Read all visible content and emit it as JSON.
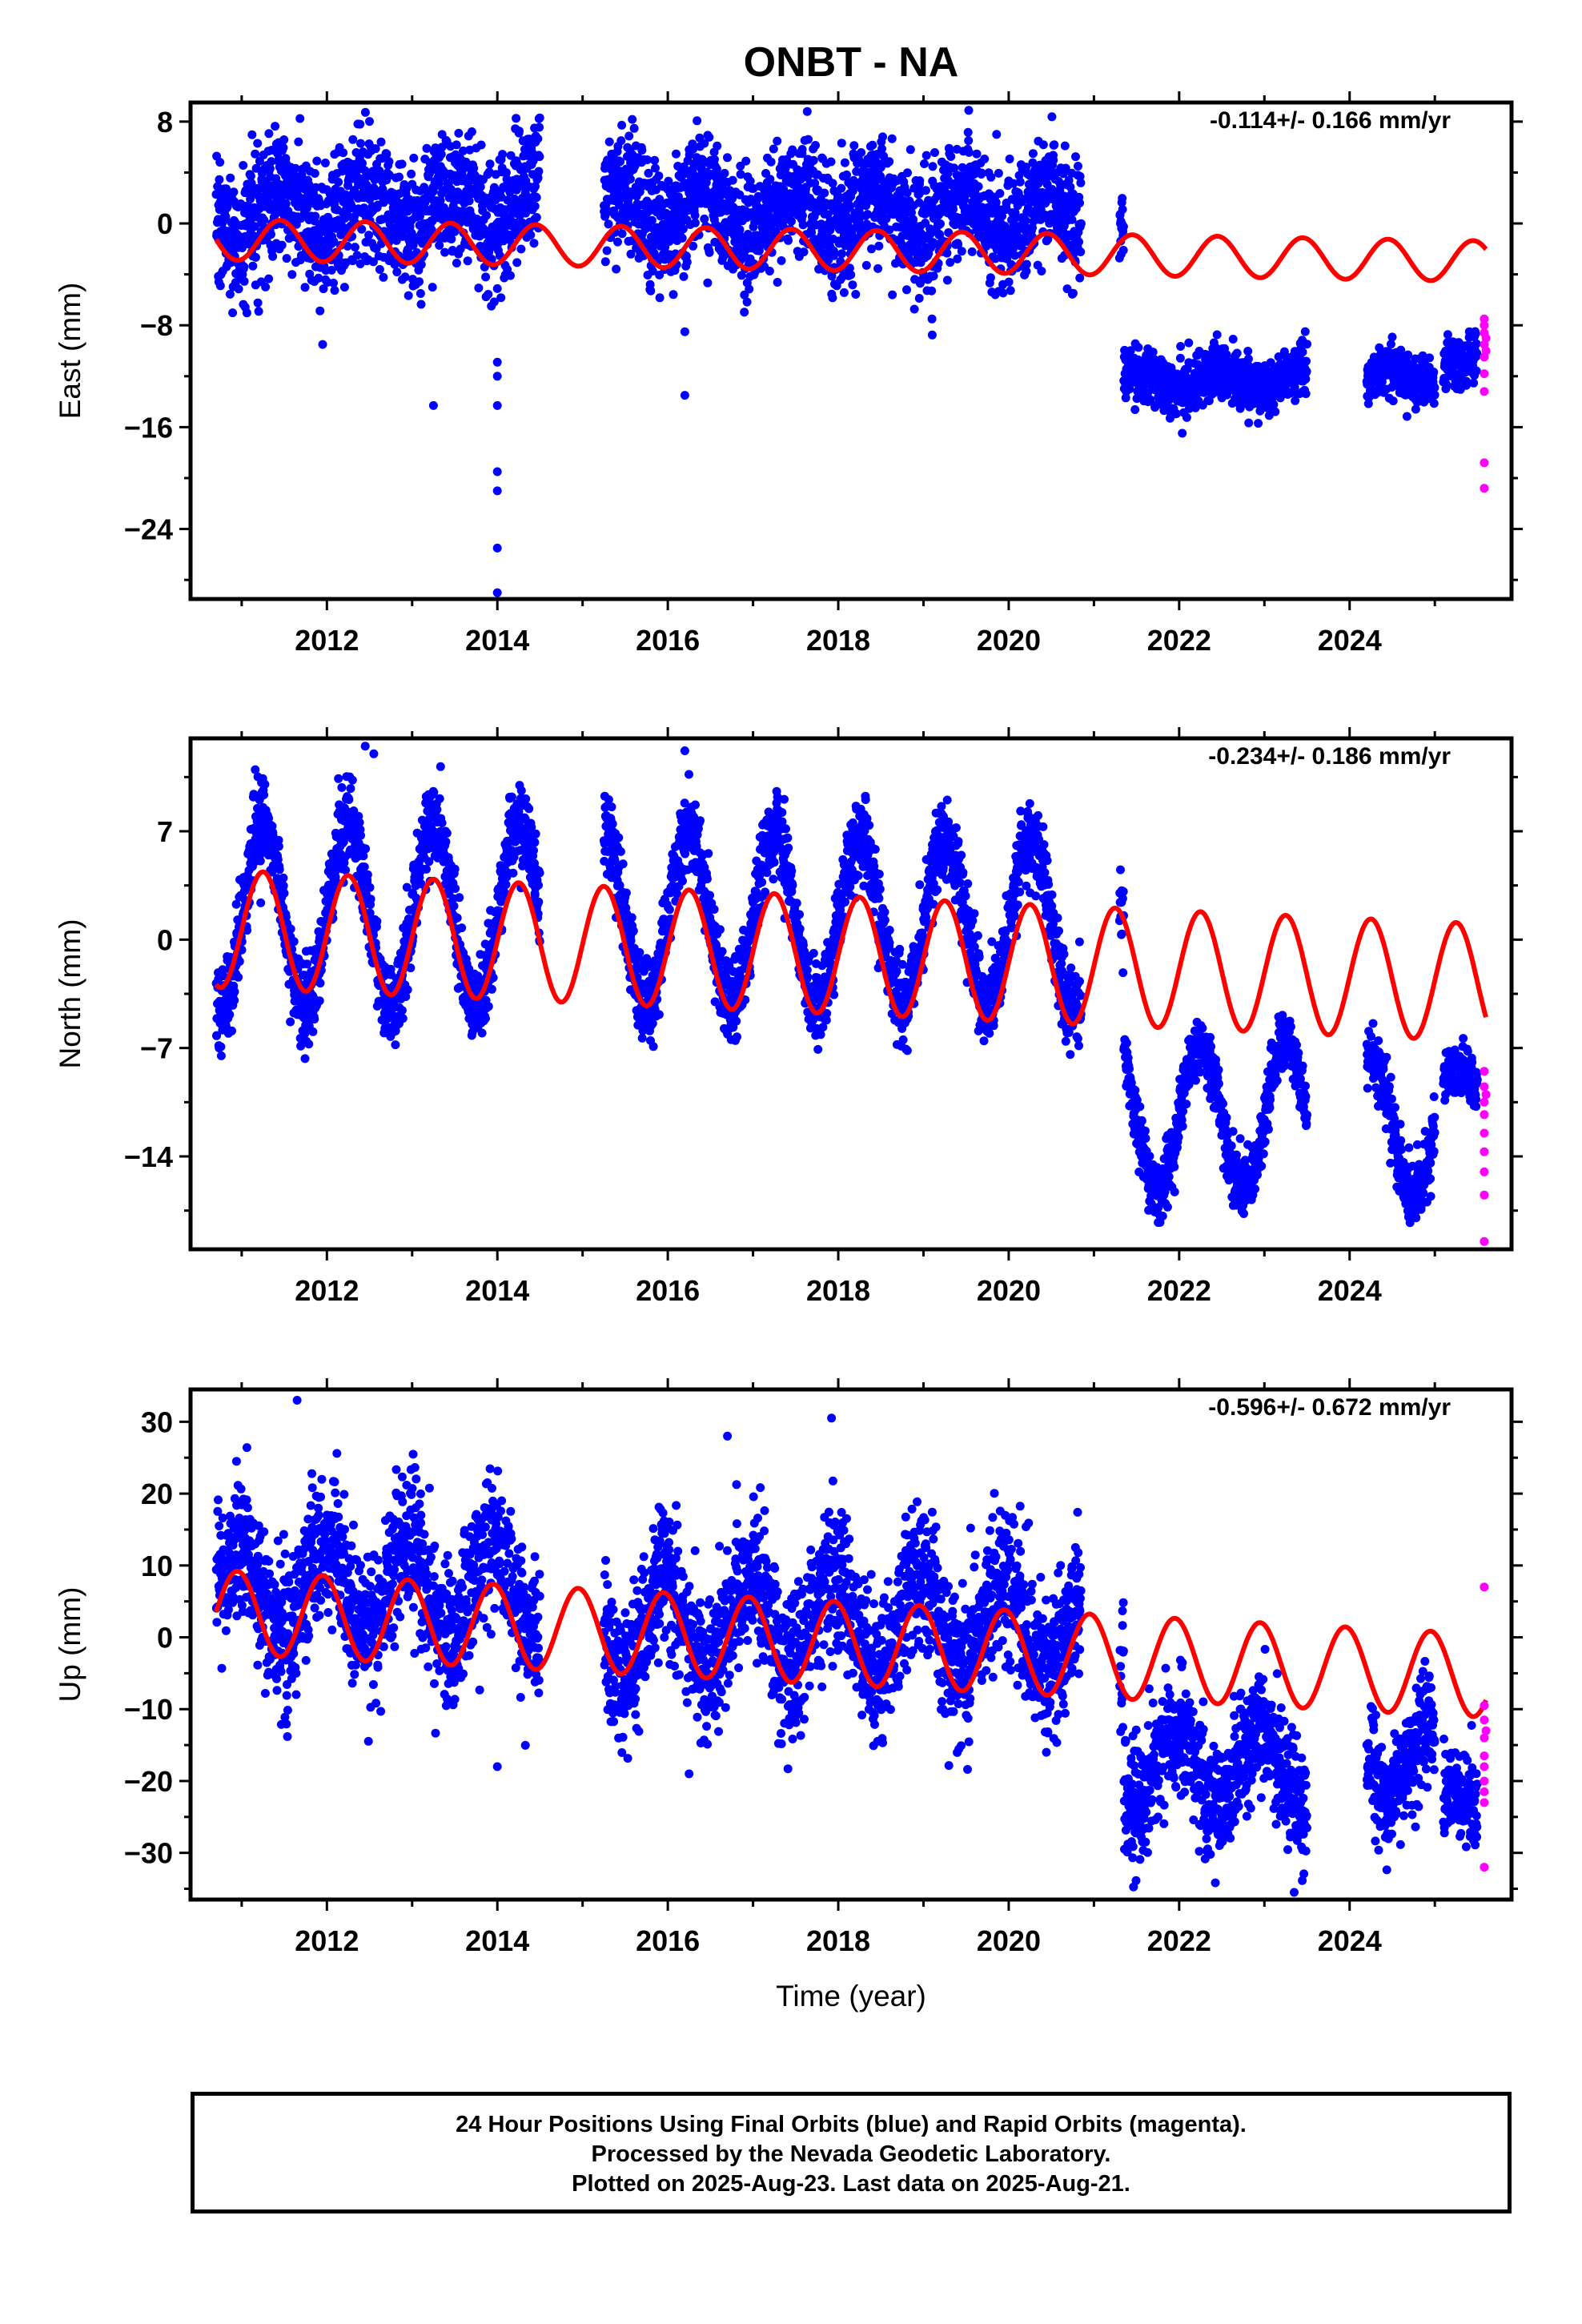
{
  "title": "ONBT - NA",
  "x_axis_label": "Time (year)",
  "footer": {
    "line1": "24 Hour Positions Using Final Orbits (blue) and Rapid Orbits (magenta).",
    "line2": "Processed by the Nevada Geodetic Laboratory.",
    "line3": "Plotted on 2025-Aug-23. Last data on 2025-Aug-21."
  },
  "colors": {
    "final": "#0000ff",
    "rapid": "#ff00ff",
    "model": "#ff0000",
    "frame": "#000000"
  },
  "chart_data": [
    {
      "type": "scatter",
      "ylabel": "East (mm)",
      "rate_text": "-0.114+/- 0.166 mm/yr",
      "xlim": [
        2010.4,
        2025.9
      ],
      "ylim": [
        -29.5,
        9.5
      ],
      "x_ticks": [
        2012,
        2014,
        2016,
        2018,
        2020,
        2022,
        2024
      ],
      "y_ticks": [
        8,
        0,
        -8,
        -16,
        -24
      ],
      "legend": "none",
      "data_segments": [
        {
          "start": 2010.7,
          "end": 2014.5,
          "base": 0.5,
          "slope": 0.3,
          "amp": 1.8,
          "phase": 0.2,
          "noise": 2.6
        },
        {
          "start": 2015.25,
          "end": 2020.85,
          "base": 1.0,
          "slope": -0.05,
          "amp": 1.8,
          "phase": 0.2,
          "noise": 2.3
        },
        {
          "start": 2021.3,
          "end": 2021.35,
          "base": -0.5,
          "slope": 0,
          "amp": 0,
          "phase": 0,
          "noise": 1.2
        },
        {
          "start": 2021.35,
          "end": 2023.5,
          "base": -12.3,
          "slope": 0,
          "amp": 0.6,
          "phase": 0.2,
          "noise": 1.1
        },
        {
          "start": 2024.2,
          "end": 2025.0,
          "base": -12.3,
          "slope": 0.4,
          "amp": 0.6,
          "phase": 0.2,
          "noise": 1.0
        },
        {
          "start": 2025.1,
          "end": 2025.5,
          "base": -11.0,
          "slope": 0,
          "amp": 0.5,
          "phase": 0.2,
          "noise": 1.1
        }
      ],
      "outliers": [
        [
          2013.25,
          -14.3
        ],
        [
          2014.0,
          -10.9
        ],
        [
          2014.0,
          -12.0
        ],
        [
          2014.0,
          -14.3
        ],
        [
          2014.0,
          -19.5
        ],
        [
          2014.0,
          -21.0
        ],
        [
          2014.0,
          -25.5
        ],
        [
          2014.0,
          -29.0
        ],
        [
          2016.2,
          -8.5
        ],
        [
          2016.2,
          -13.5
        ],
        [
          2011.95,
          -9.5
        ],
        [
          2019.1,
          -7.5
        ],
        [
          2013.1,
          -5.5
        ]
      ],
      "rapid_points": [
        [
          2025.58,
          -7.5
        ],
        [
          2025.58,
          -8.0
        ],
        [
          2025.58,
          -8.6
        ],
        [
          2025.58,
          -9.5
        ],
        [
          2025.58,
          -10.5
        ],
        [
          2025.58,
          -11.8
        ],
        [
          2025.58,
          -13.2
        ],
        [
          2025.58,
          -18.8
        ],
        [
          2025.58,
          -20.8
        ],
        [
          2025.6,
          -9.0
        ],
        [
          2025.6,
          -10.0
        ]
      ],
      "model": {
        "start": 2010.7,
        "end": 2025.6,
        "offset": -2.1,
        "slope": -0.114,
        "amp": 1.6,
        "phase": 0.2
      }
    },
    {
      "type": "scatter",
      "ylabel": "North (mm)",
      "rate_text": "-0.234+/- 0.186 mm/yr",
      "xlim": [
        2010.4,
        2025.9
      ],
      "ylim": [
        -20.0,
        13.0
      ],
      "x_ticks": [
        2012,
        2014,
        2016,
        2018,
        2020,
        2022,
        2024
      ],
      "y_ticks": [
        7,
        0,
        -7,
        -14
      ],
      "legend": "none",
      "data_segments": [
        {
          "start": 2010.7,
          "end": 2014.5,
          "base": 1.5,
          "slope": 0,
          "amp": 6.0,
          "phase": 0.0,
          "noise": 1.4
        },
        {
          "start": 2015.25,
          "end": 2020.85,
          "base": 1.5,
          "slope": -0.1,
          "amp": 5.5,
          "phase": 0.0,
          "noise": 1.3
        },
        {
          "start": 2021.3,
          "end": 2021.35,
          "base": 2.0,
          "slope": 0,
          "amp": 0,
          "phase": 0,
          "noise": 1.2
        },
        {
          "start": 2021.35,
          "end": 2023.5,
          "base": -11.5,
          "slope": 0,
          "amp": 4.8,
          "phase": 0.0,
          "noise": 1.0
        },
        {
          "start": 2024.2,
          "end": 2025.0,
          "base": -12.0,
          "slope": 0,
          "amp": 4.5,
          "phase": 0.0,
          "noise": 1.0
        },
        {
          "start": 2025.1,
          "end": 2025.5,
          "base": -9.5,
          "slope": 0,
          "amp": 1.0,
          "phase": 0.0,
          "noise": 0.9
        }
      ],
      "outliers": [
        [
          2016.2,
          12.2
        ],
        [
          2012.45,
          12.5
        ],
        [
          2012.55,
          12.0
        ]
      ],
      "rapid_points": [
        [
          2025.58,
          -8.5
        ],
        [
          2025.58,
          -9.5
        ],
        [
          2025.58,
          -10.5
        ],
        [
          2025.58,
          -11.3
        ],
        [
          2025.58,
          -12.5
        ],
        [
          2025.58,
          -13.7
        ],
        [
          2025.58,
          -15.0
        ],
        [
          2025.58,
          -16.5
        ],
        [
          2025.58,
          -19.5
        ],
        [
          2025.6,
          -10.0
        ]
      ],
      "model": {
        "start": 2010.7,
        "end": 2025.6,
        "offset": -1.0,
        "slope": -0.234,
        "amp": 3.8,
        "phase": 0.0
      }
    },
    {
      "type": "scatter",
      "ylabel": "Up (mm)",
      "rate_text": "-0.596+/- 0.672 mm/yr",
      "xlim": [
        2010.4,
        2025.9
      ],
      "ylim": [
        -36.5,
        34.5
      ],
      "x_ticks": [
        2012,
        2014,
        2016,
        2018,
        2020,
        2022,
        2024
      ],
      "y_ticks": [
        30,
        20,
        10,
        0,
        -10,
        -20,
        -30
      ],
      "legend": "none",
      "data_segments": [
        {
          "start": 2010.7,
          "end": 2014.5,
          "base": 6.5,
          "slope": 0,
          "amp": 6.5,
          "phase": 0.7,
          "noise": 5.0
        },
        {
          "start": 2015.25,
          "end": 2020.85,
          "base": 2.0,
          "slope": 0,
          "amp": 6.5,
          "phase": 0.7,
          "noise": 5.0
        },
        {
          "start": 2021.3,
          "end": 2021.35,
          "base": -4.0,
          "slope": 0,
          "amp": 0,
          "phase": 0,
          "noise": 5.0
        },
        {
          "start": 2021.35,
          "end": 2023.5,
          "base": -18.0,
          "slope": 0,
          "amp": 5.5,
          "phase": 0.7,
          "noise": 4.5
        },
        {
          "start": 2024.2,
          "end": 2025.0,
          "base": -17.0,
          "slope": 0,
          "amp": 5.0,
          "phase": 0.7,
          "noise": 4.0
        },
        {
          "start": 2025.1,
          "end": 2025.5,
          "base": -21.0,
          "slope": 0,
          "amp": 2.0,
          "phase": 0.7,
          "noise": 3.5
        }
      ],
      "outliers": [
        [
          2011.65,
          33.0
        ],
        [
          2014.0,
          -18.0
        ],
        [
          2016.25,
          -19.0
        ],
        [
          2023.35,
          -35.5
        ],
        [
          2016.7,
          28.0
        ]
      ],
      "rapid_points": [
        [
          2025.58,
          7.0
        ],
        [
          2025.58,
          -9.5
        ],
        [
          2025.58,
          -11.5
        ],
        [
          2025.58,
          -14.0
        ],
        [
          2025.58,
          -16.5
        ],
        [
          2025.58,
          -18.0
        ],
        [
          2025.58,
          -20.0
        ],
        [
          2025.58,
          -21.5
        ],
        [
          2025.58,
          -23.0
        ],
        [
          2025.58,
          -32.0
        ],
        [
          2025.6,
          -13.0
        ]
      ],
      "model": {
        "start": 2010.7,
        "end": 2025.6,
        "offset": -0.8,
        "slope": -0.596,
        "amp": 5.8,
        "phase": 0.7
      }
    }
  ]
}
